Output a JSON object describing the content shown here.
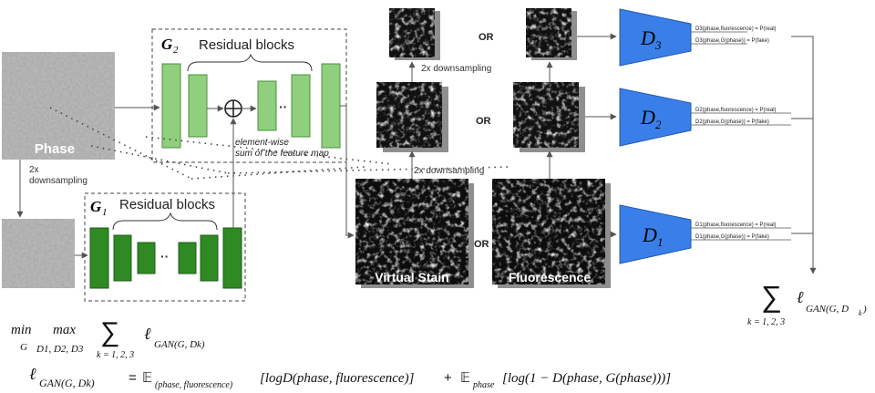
{
  "generator_g2": {
    "symbol": "G",
    "subscript": "2",
    "title": "Residual blocks",
    "dots": "··"
  },
  "generator_g1": {
    "symbol": "G",
    "subscript": "1",
    "title": "Residual blocks",
    "dots": "··"
  },
  "inputs": {
    "phase_label": "Phase"
  },
  "annotations": {
    "downsample_phase_line1": "2x",
    "downsample_phase_line2": "downsampling",
    "elementwise_line1": "element-wise",
    "elementwise_line2": "sum of the feature map",
    "downsample_top": "2x downsampling",
    "downsample_mid": "2x downsampling"
  },
  "images": {
    "virtual_stain_label": "Virtual Stain",
    "fluorescence_label": "Fluorescence"
  },
  "or_labels": {
    "top": "OR",
    "middle": "OR",
    "bottom": "OR"
  },
  "discriminators": [
    {
      "symbol": "D",
      "subscript": "3",
      "output_real": "D3(phase,fluorescence) = P(real)",
      "output_fake": "D3(phase,G(phase)) = P(fake)"
    },
    {
      "symbol": "D",
      "subscript": "2",
      "output_real": "D2(phase,fluorescence) = P(real)",
      "output_fake": "D2(phase,G(phase)) = P(fake)"
    },
    {
      "symbol": "D",
      "subscript": "1",
      "output_real": "D1(phase,fluorescence) = P(real)",
      "output_fake": "D1(phase,G(phase)) = P(fake)"
    }
  ],
  "loss_sum": {
    "sigma": "∑",
    "term": "ℓ",
    "subscript": "GAN(G, D",
    "k_sub": "k",
    "close": ")",
    "range": "k = 1, 2, 3"
  },
  "objective": {
    "min": "min",
    "min_sub": "G",
    "max": "max",
    "max_sub": "D1, D2, D3",
    "sigma": "∑",
    "range": "k = 1, 2, 3",
    "term": "ℓ",
    "term_sub": "GAN(G, Dk)"
  },
  "loss_definition": {
    "lhs_term": "ℓ",
    "lhs_sub": "GAN(G, Dk)",
    "equals": "=",
    "expect1": "𝔼",
    "expect1_sub": "(phase, fluorescence)",
    "bracket1": "[logD(phase, fluorescence)]",
    "plus": "+",
    "expect2": "𝔼",
    "expect2_sub": "phase",
    "bracket2": "[log(1 − D(phase, G(phase)))]"
  },
  "colors": {
    "g2_block": "#8fcf7e",
    "g2_block_border": "#4d8f3e",
    "g1_block": "#2f8a24",
    "g1_block_border": "#1e5c17",
    "discriminator": "#3a7fe8",
    "discriminator_border": "#2458b0",
    "arrow": "#555555"
  },
  "icons": {
    "sum_node": "circled-plus-icon"
  }
}
